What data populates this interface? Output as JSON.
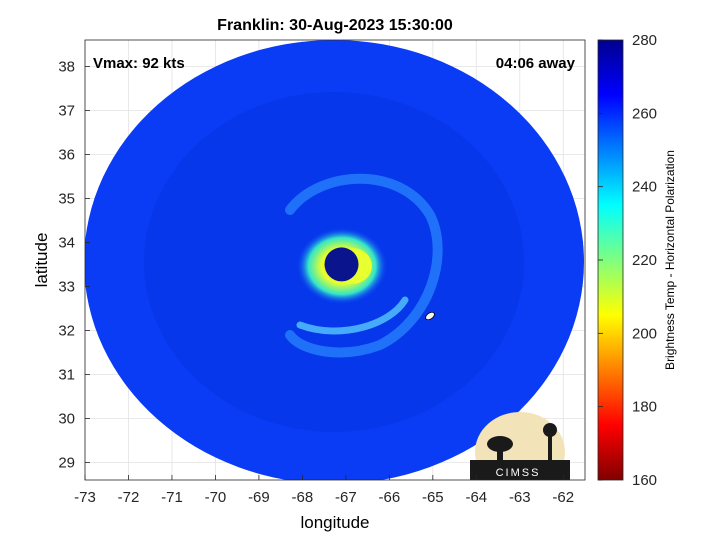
{
  "chart_data": {
    "type": "heatmap",
    "title": "Franklin: 30-Aug-2023 15:30:00",
    "xlabel": "longitude",
    "ylabel": "latitude",
    "xlim": [
      -73,
      -61.5
    ],
    "ylim": [
      28.6,
      38.6
    ],
    "xticks": [
      -73,
      -72,
      -71,
      -70,
      -69,
      -68,
      -67,
      -66,
      -65,
      -64,
      -63,
      -62
    ],
    "yticks": [
      29,
      30,
      31,
      32,
      33,
      34,
      35,
      36,
      37,
      38
    ],
    "grid": true,
    "annotations": {
      "vmax": "Vmax: 92 kts",
      "time_away": "04:06 away"
    },
    "storm_center": {
      "lon": -67.1,
      "lat": 33.5
    },
    "colorbar": {
      "label": "Brightness Temp - Horizontal Polarization",
      "min": 160,
      "max": 280,
      "ticks": [
        160,
        180,
        200,
        220,
        240,
        260,
        280
      ],
      "colormap": "jet"
    },
    "logo_text": "CIMSS"
  }
}
